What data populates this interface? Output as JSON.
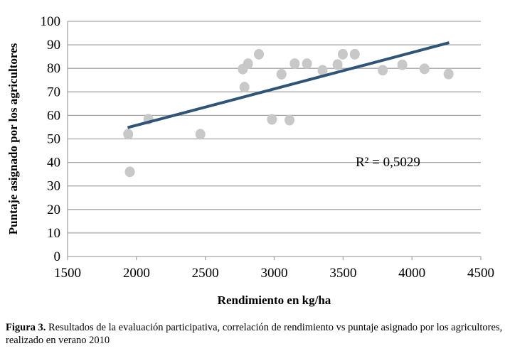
{
  "chart_data": {
    "type": "scatter",
    "xlabel": "Rendimiento en kg/ha",
    "ylabel": "Puntaje asignado por los agricultores",
    "xlim": [
      1500,
      4500
    ],
    "ylim": [
      0,
      100
    ],
    "xticks": [
      1500,
      2000,
      2500,
      3000,
      3500,
      4000,
      4500
    ],
    "yticks": [
      0,
      10,
      20,
      30,
      40,
      50,
      60,
      70,
      80,
      90,
      100
    ],
    "grid": "horizontal",
    "points": [
      [
        1940,
        52
      ],
      [
        1952,
        36
      ],
      [
        2087,
        58.4
      ],
      [
        2464,
        52
      ],
      [
        2772,
        79.7
      ],
      [
        2784,
        72
      ],
      [
        2810,
        82
      ],
      [
        2889,
        86
      ],
      [
        2984,
        58.3
      ],
      [
        3053,
        77.5
      ],
      [
        3111,
        58
      ],
      [
        3149,
        82
      ],
      [
        3238,
        82
      ],
      [
        3351,
        79.2
      ],
      [
        3460,
        81.6
      ],
      [
        3498,
        86
      ],
      [
        3585,
        86
      ],
      [
        3788,
        79.2
      ],
      [
        3930,
        81.5
      ],
      [
        4091,
        79.8
      ],
      [
        4266,
        77.6
      ]
    ],
    "trendline": {
      "x": [
        1936,
        4270
      ],
      "y": [
        54.8,
        90.9
      ]
    },
    "annotation": "R² = 0,5029",
    "colors": {
      "points": "#c8c8c8",
      "trend": "#2e5478",
      "grid": "#a6a6a6"
    }
  },
  "caption": {
    "label": "Figura 3.",
    "text": " Resultados de la evaluación participativa, correlación de rendimiento vs puntaje asignado por los agricultores, realizado en verano 2010"
  }
}
